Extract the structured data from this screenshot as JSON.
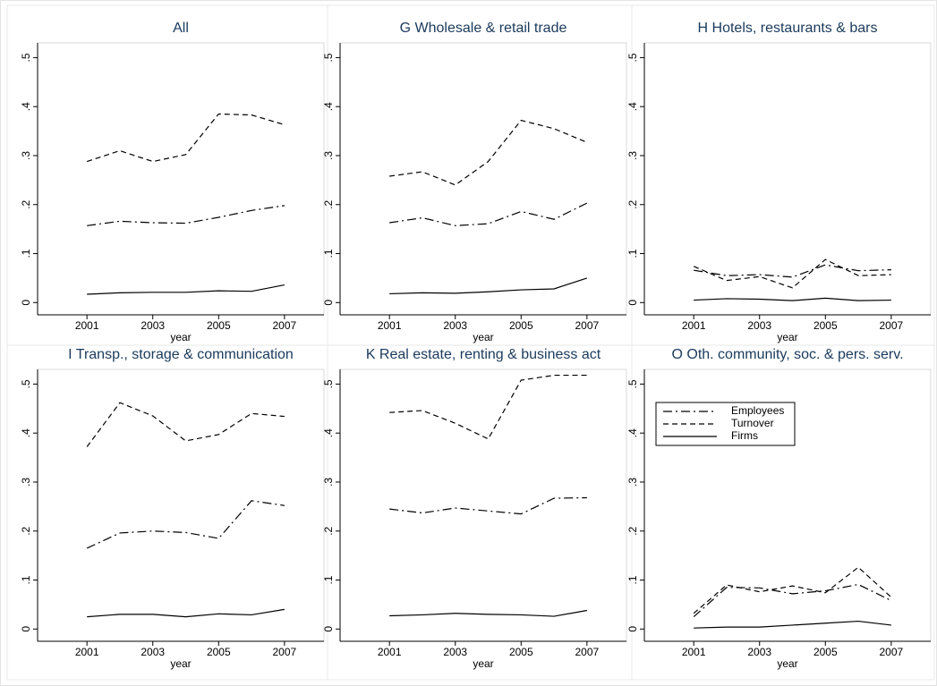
{
  "chart_data": [
    {
      "type": "line",
      "title": "All",
      "xlabel": "year",
      "x": [
        2001,
        2002,
        2003,
        2004,
        2005,
        2006,
        2007
      ],
      "xlim": [
        1999.5,
        2008.2
      ],
      "xticks": [
        2001,
        2003,
        2005,
        2007
      ],
      "ylim": [
        -0.025,
        0.53
      ],
      "yticks": [
        0,
        {
          "value": 0.1,
          "label": ".1"
        },
        {
          "value": 0.2,
          "label": ".2"
        },
        {
          "value": 0.3,
          "label": ".3"
        },
        {
          "value": 0.4,
          "label": ".4"
        },
        {
          "value": 0.5,
          "label": ".5"
        }
      ],
      "series": [
        {
          "name": "Employees",
          "color": "#000000",
          "dash": "dash-dot",
          "values": [
            0.157,
            0.166,
            0.163,
            0.162,
            0.174,
            0.188,
            0.198
          ]
        },
        {
          "name": "Turnover",
          "color": "#000000",
          "dash": "dash",
          "values": [
            0.288,
            0.31,
            0.288,
            0.302,
            0.385,
            0.383,
            0.363
          ]
        },
        {
          "name": "Firms",
          "color": "#000000",
          "dash": "solid",
          "values": [
            0.017,
            0.02,
            0.021,
            0.021,
            0.024,
            0.023,
            0.036
          ]
        }
      ]
    },
    {
      "type": "line",
      "title": "G Wholesale & retail trade",
      "xlabel": "year",
      "x": [
        2001,
        2002,
        2003,
        2004,
        2005,
        2006,
        2007
      ],
      "xlim": [
        1999.5,
        2008.2
      ],
      "xticks": [
        2001,
        2003,
        2005,
        2007
      ],
      "ylim": [
        -0.025,
        0.53
      ],
      "yticks": [
        0,
        {
          "value": 0.1,
          "label": ".1"
        },
        {
          "value": 0.2,
          "label": ".2"
        },
        {
          "value": 0.3,
          "label": ".3"
        },
        {
          "value": 0.4,
          "label": ".4"
        },
        {
          "value": 0.5,
          "label": ".5"
        }
      ],
      "series": [
        {
          "name": "Employees",
          "color": "#000000",
          "dash": "dash-dot",
          "values": [
            0.163,
            0.173,
            0.157,
            0.161,
            0.186,
            0.17,
            0.203
          ]
        },
        {
          "name": "Turnover",
          "color": "#000000",
          "dash": "dash",
          "values": [
            0.258,
            0.267,
            0.24,
            0.288,
            0.372,
            0.355,
            0.327
          ]
        },
        {
          "name": "Firms",
          "color": "#000000",
          "dash": "solid",
          "values": [
            0.018,
            0.02,
            0.019,
            0.022,
            0.026,
            0.028,
            0.05
          ]
        }
      ]
    },
    {
      "type": "line",
      "title": "H Hotels, restaurants & bars",
      "xlabel": "year",
      "x": [
        2001,
        2002,
        2003,
        2004,
        2005,
        2006,
        2007
      ],
      "xlim": [
        1999.5,
        2008.2
      ],
      "xticks": [
        2001,
        2003,
        2005,
        2007
      ],
      "ylim": [
        -0.025,
        0.53
      ],
      "yticks": [
        0,
        {
          "value": 0.1,
          "label": ".1"
        },
        {
          "value": 0.2,
          "label": ".2"
        },
        {
          "value": 0.3,
          "label": ".3"
        },
        {
          "value": 0.4,
          "label": ".4"
        },
        {
          "value": 0.5,
          "label": ".5"
        }
      ],
      "series": [
        {
          "name": "Employees",
          "color": "#000000",
          "dash": "dash-dot",
          "values": [
            0.066,
            0.055,
            0.057,
            0.052,
            0.077,
            0.065,
            0.067
          ]
        },
        {
          "name": "Turnover",
          "color": "#000000",
          "dash": "dash",
          "values": [
            0.074,
            0.045,
            0.053,
            0.03,
            0.088,
            0.055,
            0.057
          ]
        },
        {
          "name": "Firms",
          "color": "#000000",
          "dash": "solid",
          "values": [
            0.005,
            0.008,
            0.007,
            0.004,
            0.009,
            0.004,
            0.005
          ]
        }
      ]
    },
    {
      "type": "line",
      "title": "I Transp., storage & communication",
      "xlabel": "year",
      "x": [
        2001,
        2002,
        2003,
        2004,
        2005,
        2006,
        2007
      ],
      "xlim": [
        1999.5,
        2008.2
      ],
      "xticks": [
        2001,
        2003,
        2005,
        2007
      ],
      "ylim": [
        -0.025,
        0.53
      ],
      "yticks": [
        0,
        {
          "value": 0.1,
          "label": ".1"
        },
        {
          "value": 0.2,
          "label": ".2"
        },
        {
          "value": 0.3,
          "label": ".3"
        },
        {
          "value": 0.4,
          "label": ".4"
        },
        {
          "value": 0.5,
          "label": ".5"
        }
      ],
      "series": [
        {
          "name": "Employees",
          "color": "#000000",
          "dash": "dash-dot",
          "values": [
            0.165,
            0.196,
            0.2,
            0.197,
            0.185,
            0.262,
            0.252
          ]
        },
        {
          "name": "Turnover",
          "color": "#000000",
          "dash": "dash",
          "values": [
            0.372,
            0.462,
            0.435,
            0.384,
            0.397,
            0.44,
            0.434
          ]
        },
        {
          "name": "Firms",
          "color": "#000000",
          "dash": "solid",
          "values": [
            0.025,
            0.03,
            0.03,
            0.025,
            0.031,
            0.029,
            0.04
          ]
        }
      ]
    },
    {
      "type": "line",
      "title": "K Real estate, renting & business act",
      "xlabel": "year",
      "x": [
        2001,
        2002,
        2003,
        2004,
        2005,
        2006,
        2007
      ],
      "xlim": [
        1999.5,
        2008.2
      ],
      "xticks": [
        2001,
        2003,
        2005,
        2007
      ],
      "ylim": [
        -0.025,
        0.53
      ],
      "yticks": [
        0,
        {
          "value": 0.1,
          "label": ".1"
        },
        {
          "value": 0.2,
          "label": ".2"
        },
        {
          "value": 0.3,
          "label": ".3"
        },
        {
          "value": 0.4,
          "label": ".4"
        },
        {
          "value": 0.5,
          "label": ".5"
        }
      ],
      "series": [
        {
          "name": "Employees",
          "color": "#000000",
          "dash": "dash-dot",
          "values": [
            0.245,
            0.237,
            0.247,
            0.241,
            0.235,
            0.267,
            0.268
          ]
        },
        {
          "name": "Turnover",
          "color": "#000000",
          "dash": "dash",
          "values": [
            0.442,
            0.446,
            0.42,
            0.388,
            0.508,
            0.518,
            0.518
          ]
        },
        {
          "name": "Firms",
          "color": "#000000",
          "dash": "solid",
          "values": [
            0.027,
            0.029,
            0.032,
            0.03,
            0.029,
            0.026,
            0.038
          ]
        }
      ]
    },
    {
      "type": "line",
      "title": "O Oth. community, soc. & pers. serv.",
      "xlabel": "year",
      "x": [
        2001,
        2002,
        2003,
        2004,
        2005,
        2006,
        2007
      ],
      "xlim": [
        1999.5,
        2008.2
      ],
      "xticks": [
        2001,
        2003,
        2005,
        2007
      ],
      "ylim": [
        -0.025,
        0.53
      ],
      "yticks": [
        0,
        {
          "value": 0.1,
          "label": ".1"
        },
        {
          "value": 0.2,
          "label": ".2"
        },
        {
          "value": 0.3,
          "label": ".3"
        },
        {
          "value": 0.4,
          "label": ".4"
        },
        {
          "value": 0.5,
          "label": ".5"
        }
      ],
      "legend": "top-left",
      "series": [
        {
          "name": "Employees",
          "color": "#000000",
          "dash": "dash-dot",
          "values": [
            0.025,
            0.085,
            0.084,
            0.072,
            0.078,
            0.091,
            0.058
          ]
        },
        {
          "name": "Turnover",
          "color": "#000000",
          "dash": "dash",
          "values": [
            0.032,
            0.09,
            0.076,
            0.088,
            0.074,
            0.126,
            0.065
          ]
        },
        {
          "name": "Firms",
          "color": "#000000",
          "dash": "solid",
          "values": [
            0.002,
            0.004,
            0.004,
            0.008,
            0.012,
            0.016,
            0.008
          ]
        }
      ]
    }
  ]
}
